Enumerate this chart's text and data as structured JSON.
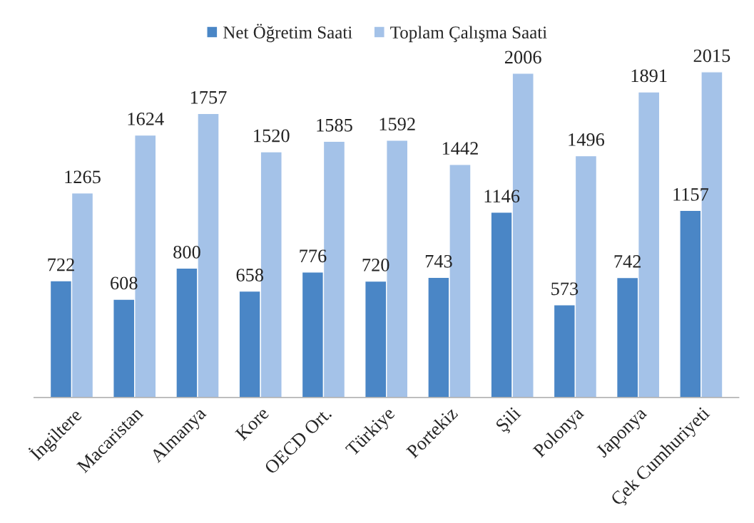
{
  "chart_data": {
    "type": "bar",
    "categories": [
      "İngiltere",
      "Macaristan",
      "Almanya",
      "Kore",
      "OECD Ort.",
      "Türkiye",
      "Portekiz",
      "Şili",
      "Polonya",
      "Japonya",
      "Çek Cumhuriyeti"
    ],
    "series": [
      {
        "name": "Net Öğretim Saati",
        "color": "#4a86c6",
        "values": [
          722,
          608,
          800,
          658,
          776,
          720,
          743,
          1146,
          573,
          742,
          1157
        ]
      },
      {
        "name": "Toplam Çalışma Saati",
        "color": "#a4c2e8",
        "values": [
          1265,
          1624,
          1757,
          1520,
          1585,
          1592,
          1442,
          2006,
          1496,
          1891,
          2015
        ]
      }
    ],
    "data_labels": true,
    "legend": "top",
    "grid": false
  }
}
